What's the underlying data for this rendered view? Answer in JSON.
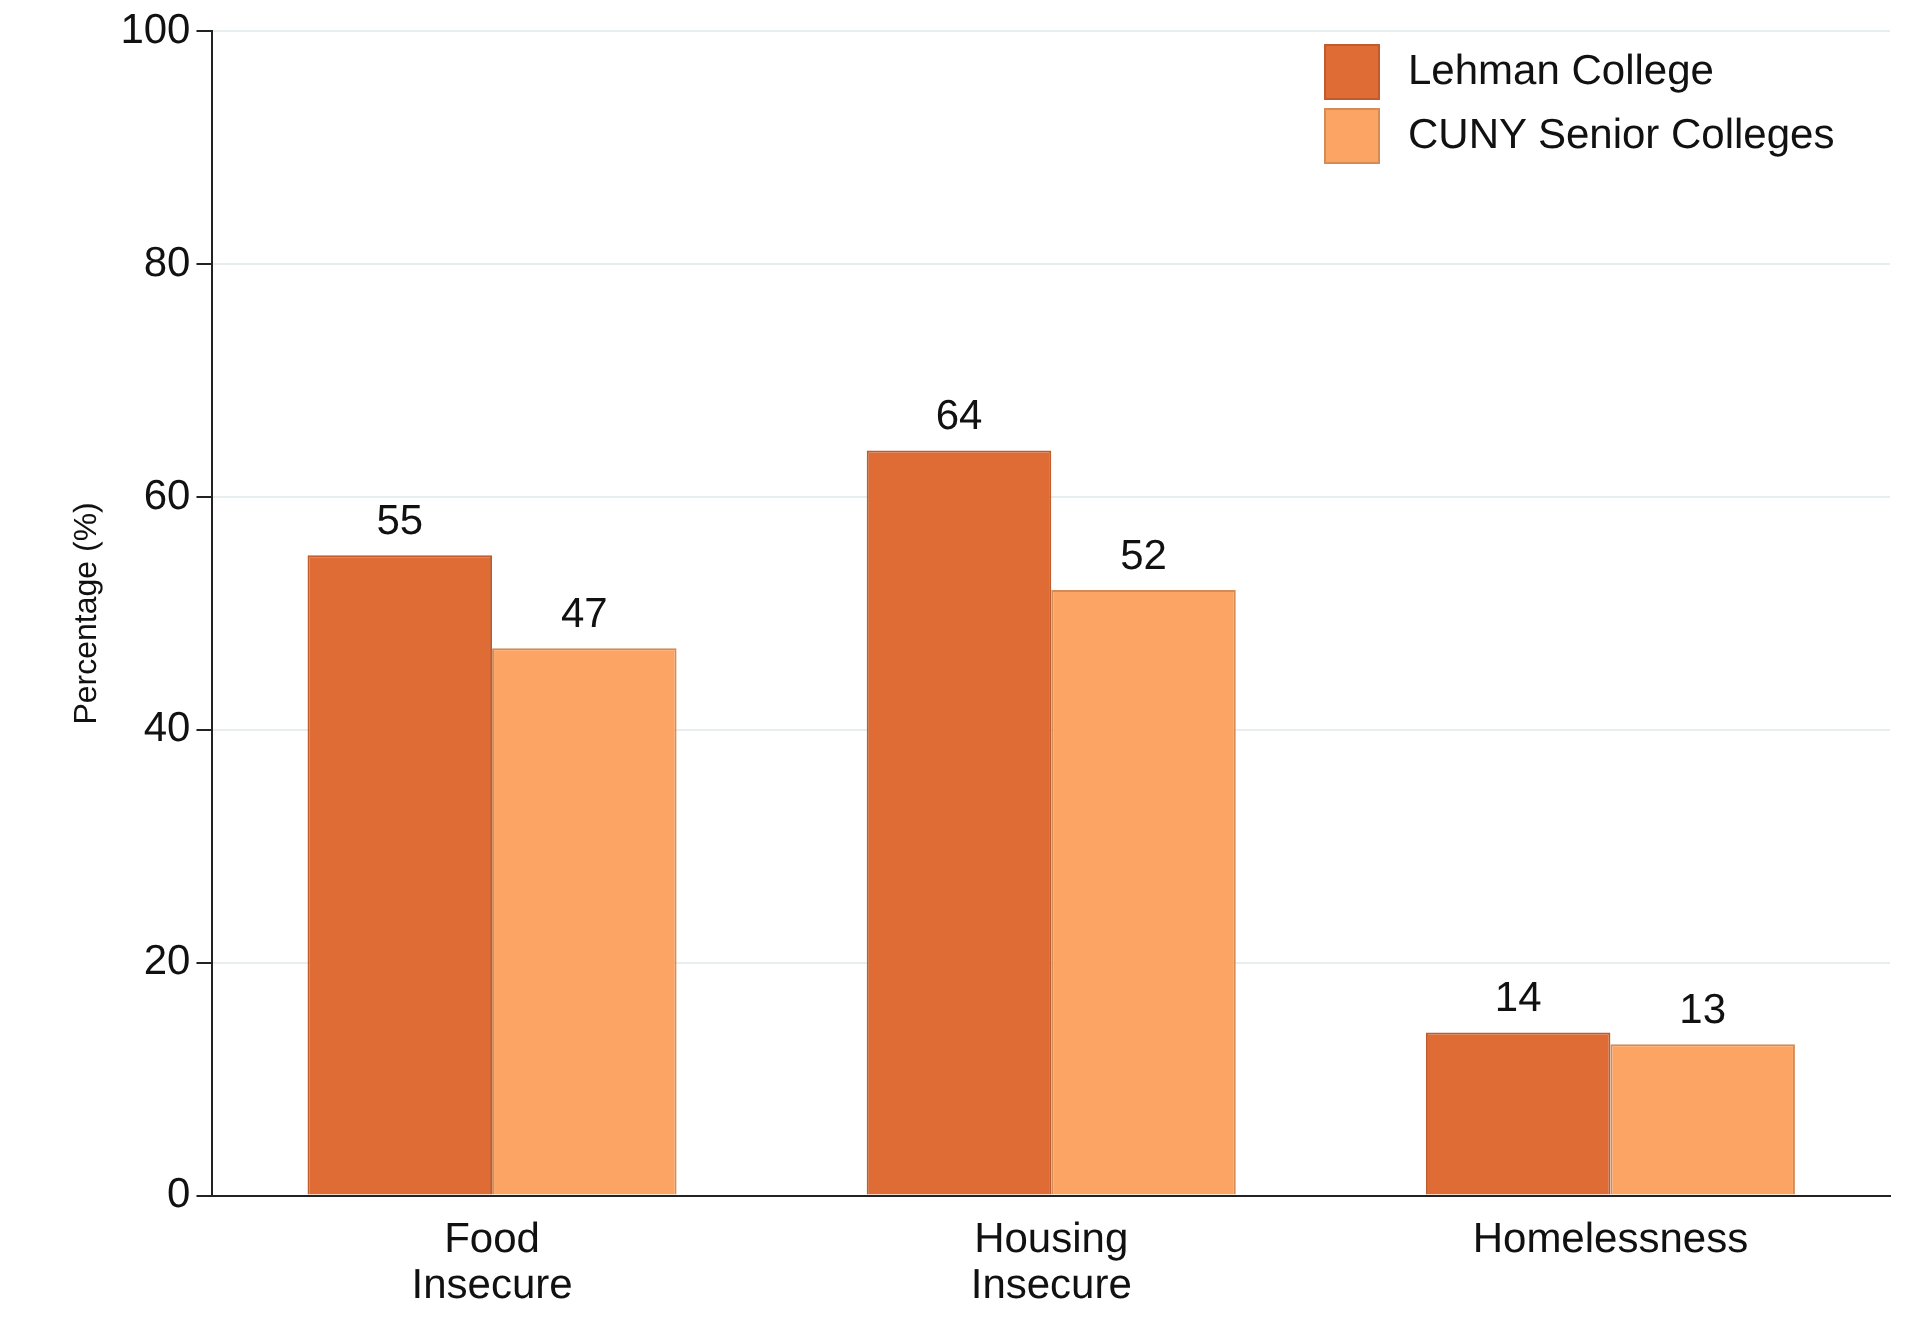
{
  "chart_data": {
    "type": "bar",
    "ylabel": "Percentage (%)",
    "categories": [
      "Food Insecure",
      "Housing Insecure",
      "Homelessness"
    ],
    "series": [
      {
        "name": "Lehman College",
        "color": "#e06c35",
        "values": [
          55,
          64,
          14
        ]
      },
      {
        "name": "CUNY Senior Colleges",
        "color": "#fba464",
        "values": [
          47,
          52,
          13
        ]
      }
    ],
    "ylim": [
      0,
      100
    ],
    "yticks": [
      0,
      20,
      40,
      60,
      80,
      100
    ],
    "grid": "y",
    "legend": "top right",
    "data_labels": true
  }
}
